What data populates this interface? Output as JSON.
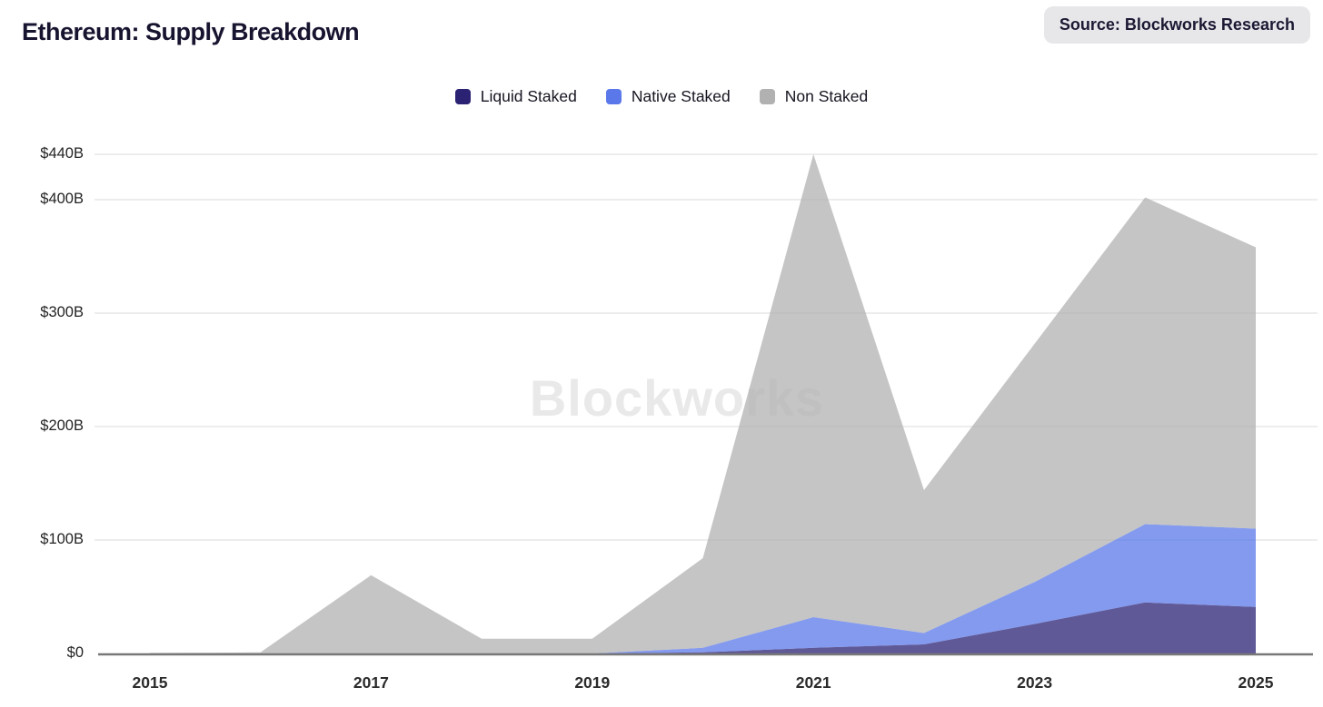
{
  "header": {
    "title": "Ethereum: Supply Breakdown",
    "source_badge": "Source: Blockworks Research"
  },
  "watermark": "Blockworks",
  "legend": [
    {
      "label": "Liquid Staked",
      "color": "#2b2274"
    },
    {
      "label": "Native Staked",
      "color": "#5a78ea"
    },
    {
      "label": "Non Staked",
      "color": "#b1b1b1"
    }
  ],
  "chart_data": {
    "type": "area",
    "stacked": true,
    "title": "Ethereum: Supply Breakdown",
    "unit": "USD billions",
    "x": [
      2015,
      2016,
      2017,
      2018,
      2019,
      2020,
      2021,
      2022,
      2023,
      2024,
      2025
    ],
    "series": [
      {
        "name": "Liquid Staked",
        "color": "#2b2274",
        "values": [
          0,
          0,
          0,
          0,
          0,
          1,
          5,
          8,
          26,
          45,
          41
        ]
      },
      {
        "name": "Native Staked",
        "color": "#5a78ea",
        "values": [
          0,
          0,
          0,
          0,
          0,
          4,
          27,
          10,
          37,
          69,
          69
        ]
      },
      {
        "name": "Non Staked",
        "color": "#b1b1b1",
        "values": [
          0.5,
          1,
          69,
          13,
          13,
          79,
          408,
          126,
          210,
          288,
          248
        ]
      }
    ],
    "totals": [
      0.5,
      1,
      69,
      13,
      13,
      84,
      440,
      144,
      273,
      402,
      358
    ],
    "y_ticks": [
      {
        "label": "$0",
        "value": 0
      },
      {
        "label": "$100B",
        "value": 100
      },
      {
        "label": "$200B",
        "value": 200
      },
      {
        "label": "$300B",
        "value": 300
      },
      {
        "label": "$400B",
        "value": 400
      },
      {
        "label": "$440B",
        "value": 440
      }
    ],
    "x_ticks": [
      {
        "label": "2015",
        "year": 2015
      },
      {
        "label": "2017",
        "year": 2017
      },
      {
        "label": "2019",
        "year": 2019
      },
      {
        "label": "2021",
        "year": 2021
      },
      {
        "label": "2023",
        "year": 2023
      },
      {
        "label": "2025",
        "year": 2025
      }
    ],
    "ylim": [
      0,
      450
    ],
    "grid": "horizontal",
    "legend_position": "top",
    "fill_opacity": 0.75
  },
  "colors": {
    "background": "#ffffff",
    "gridline": "#e7e7e7",
    "axis_line": "#787878",
    "watermark": "#e9e9e9",
    "badge_bg": "#e7e7ea",
    "title_text": "#171430"
  }
}
